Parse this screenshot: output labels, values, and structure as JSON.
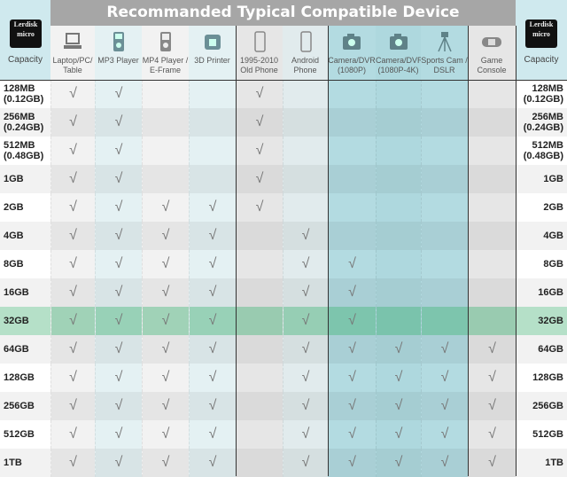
{
  "title": "Recommanded Typical Compatible Device",
  "brand": "Lerdisk",
  "capacity_label": "Capacity",
  "columns": [
    {
      "label": "Laptop/PC/ Table",
      "icon": "laptop-icon",
      "color": "#f2f2f2"
    },
    {
      "label": "MP3 Player",
      "icon": "mp3-player-icon",
      "color": "#e4f1f3"
    },
    {
      "label": "MP4 Player / E-Frame",
      "icon": "mp4-player-icon",
      "color": "#f2f2f2"
    },
    {
      "label": "3D Printer",
      "icon": "3d-printer-icon",
      "color": "#e4f1f3"
    },
    {
      "label": "1995-2010 Old Phone",
      "icon": "old-phone-icon",
      "color": "#e6e6e6"
    },
    {
      "label": "Android Phone",
      "icon": "android-phone-icon",
      "color": "#e1ebed"
    },
    {
      "label": "Camera/DVR (1080P)",
      "icon": "camera-icon",
      "color": "#b3dbe1"
    },
    {
      "label": "Camera/DVR (1080P-4K)",
      "icon": "camera-4k-icon",
      "color": "#aed8de"
    },
    {
      "label": "Sports Cam / DSLR",
      "icon": "tripod-icon",
      "color": "#b3dbe1"
    },
    {
      "label": "Game Console",
      "icon": "game-console-icon",
      "color": "#e6e6e6"
    }
  ],
  "check": "√",
  "highlight_color": "#7cc7a0",
  "rows": [
    {
      "capacity": "128MB (0.12GB)",
      "checks": [
        1,
        1,
        0,
        0,
        1,
        0,
        0,
        0,
        0,
        0
      ]
    },
    {
      "capacity": "256MB (0.24GB)",
      "checks": [
        1,
        1,
        0,
        0,
        1,
        0,
        0,
        0,
        0,
        0
      ]
    },
    {
      "capacity": "512MB (0.48GB)",
      "checks": [
        1,
        1,
        0,
        0,
        1,
        0,
        0,
        0,
        0,
        0
      ]
    },
    {
      "capacity": "1GB",
      "checks": [
        1,
        1,
        0,
        0,
        1,
        0,
        0,
        0,
        0,
        0
      ]
    },
    {
      "capacity": "2GB",
      "checks": [
        1,
        1,
        1,
        1,
        1,
        0,
        0,
        0,
        0,
        0
      ]
    },
    {
      "capacity": "4GB",
      "checks": [
        1,
        1,
        1,
        1,
        0,
        1,
        0,
        0,
        0,
        0
      ]
    },
    {
      "capacity": "8GB",
      "checks": [
        1,
        1,
        1,
        1,
        0,
        1,
        1,
        0,
        0,
        0
      ]
    },
    {
      "capacity": "16GB",
      "checks": [
        1,
        1,
        1,
        1,
        0,
        1,
        1,
        0,
        0,
        0
      ]
    },
    {
      "capacity": "32GB",
      "checks": [
        1,
        1,
        1,
        1,
        0,
        1,
        1,
        0,
        0,
        0
      ],
      "highlighted": true
    },
    {
      "capacity": "64GB",
      "checks": [
        1,
        1,
        1,
        1,
        0,
        1,
        1,
        1,
        1,
        1
      ]
    },
    {
      "capacity": "128GB",
      "checks": [
        1,
        1,
        1,
        1,
        0,
        1,
        1,
        1,
        1,
        1
      ]
    },
    {
      "capacity": "256GB",
      "checks": [
        1,
        1,
        1,
        1,
        0,
        1,
        1,
        1,
        1,
        1
      ]
    },
    {
      "capacity": "512GB",
      "checks": [
        1,
        1,
        1,
        1,
        0,
        1,
        1,
        1,
        1,
        1
      ]
    },
    {
      "capacity": "1TB",
      "checks": [
        1,
        1,
        1,
        1,
        0,
        1,
        1,
        1,
        1,
        1
      ]
    }
  ]
}
